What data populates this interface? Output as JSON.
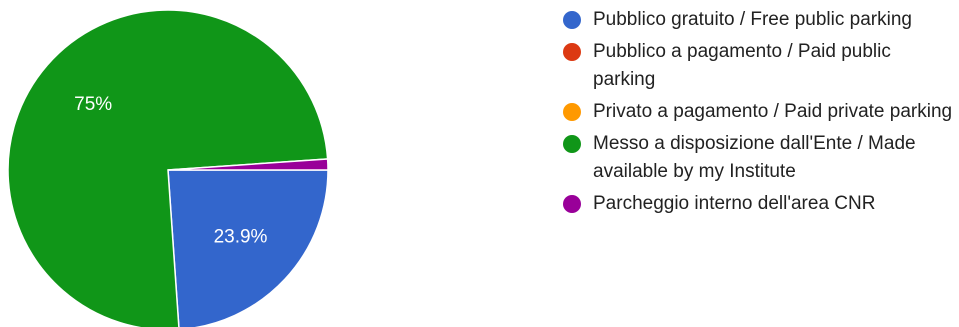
{
  "chart_data": {
    "type": "pie",
    "title": "",
    "slices": [
      {
        "label": "Pubblico gratuito / Free public parking",
        "value": 23.9,
        "value_label": "23.9%",
        "color": "#3366cc"
      },
      {
        "label": "Pubblico a pagamento / Paid public parking",
        "value": 0,
        "value_label": "",
        "color": "#dc3912"
      },
      {
        "label": "Privato a pagamento / Paid private parking",
        "value": 0,
        "value_label": "",
        "color": "#ff9900"
      },
      {
        "label": "Messo a disposizione dall'Ente / Made available by my Institute",
        "value": 75,
        "value_label": "75%",
        "color": "#109618"
      },
      {
        "label": "Parcheggio interno dell'area CNR",
        "value": 1.1,
        "value_label": "",
        "color": "#990099"
      }
    ],
    "legend_position": "right"
  }
}
